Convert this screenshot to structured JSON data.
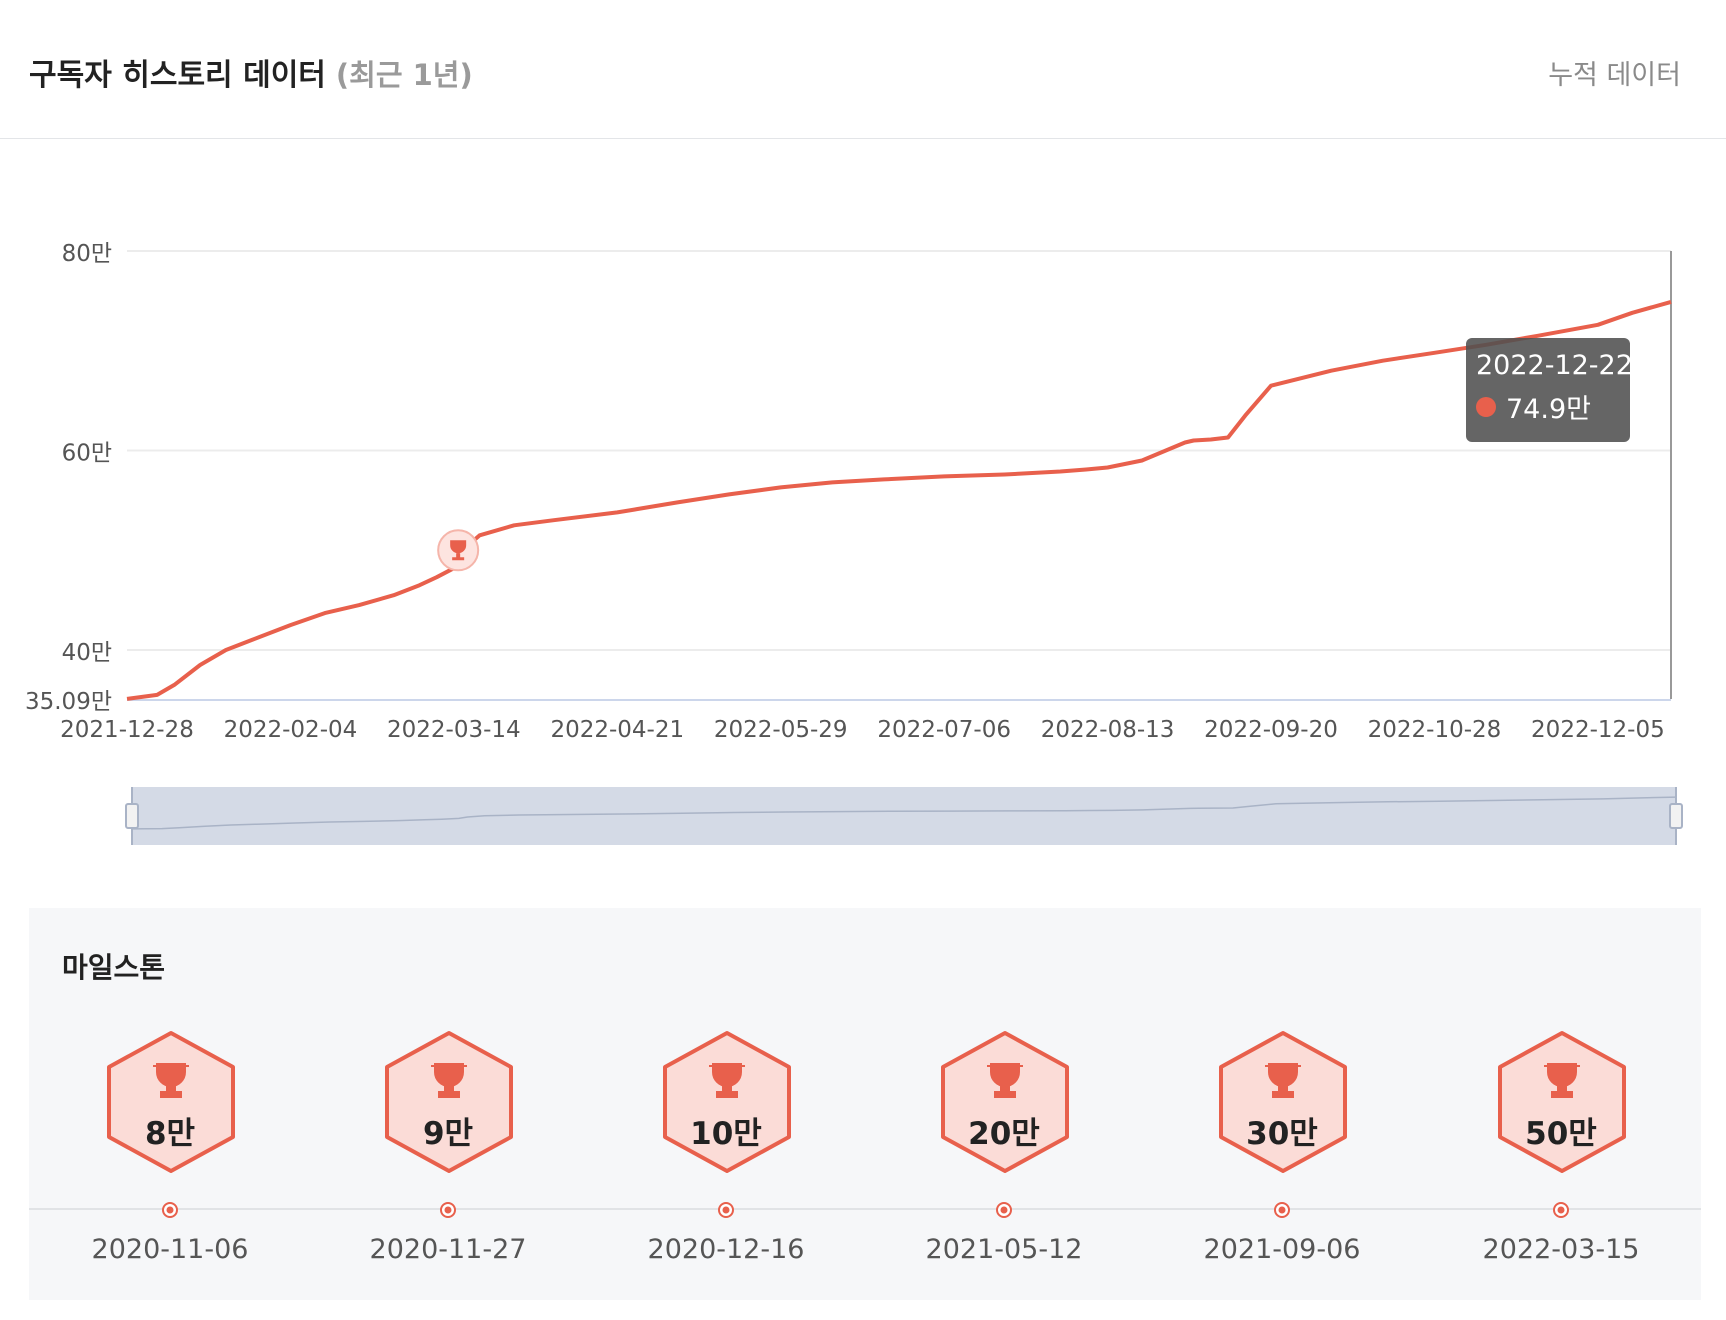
{
  "header": {
    "title": "구독자 히스토리 데이터",
    "subtitle": "(최근 1년)",
    "cumulative_link": "누적 데이터"
  },
  "tooltip": {
    "date": "2022-12-22",
    "value": "74.9만"
  },
  "colors": {
    "line": "#e8604c",
    "grid": "#ececec",
    "navigator": "#d4dae6",
    "milestone_fill": "#fbdcd7"
  },
  "chart_data": {
    "type": "line",
    "title": "",
    "xlabel": "",
    "ylabel": "",
    "ylim": [
      35.09,
      80
    ],
    "y_unit": "만",
    "y_ticks": [
      "35.09만",
      "40만",
      "60만",
      "80만"
    ],
    "x_tick_labels": [
      "2021-12-28",
      "2022-02-04",
      "2022-03-14",
      "2022-04-21",
      "2022-05-29",
      "2022-07-06",
      "2022-08-13",
      "2022-09-20",
      "2022-10-28",
      "2022-12-05"
    ],
    "milestone_marker": {
      "date": "2022-03-15",
      "value": 50
    },
    "series": [
      {
        "x": [
          "2021-12-28",
          "2022-01-04",
          "2022-01-08",
          "2022-01-14",
          "2022-01-20",
          "2022-01-26",
          "2022-02-04",
          "2022-02-12",
          "2022-02-20",
          "2022-02-28",
          "2022-03-06",
          "2022-03-10",
          "2022-03-14",
          "2022-03-16",
          "2022-03-20",
          "2022-03-28",
          "2022-04-06",
          "2022-04-21",
          "2022-05-05",
          "2022-05-17",
          "2022-05-29",
          "2022-06-10",
          "2022-06-22",
          "2022-07-06",
          "2022-07-20",
          "2022-08-02",
          "2022-08-08",
          "2022-08-13",
          "2022-08-21",
          "2022-08-31",
          "2022-09-02",
          "2022-09-06",
          "2022-09-10",
          "2022-09-14",
          "2022-09-20",
          "2022-10-04",
          "2022-10-16",
          "2022-10-28",
          "2022-11-09",
          "2022-11-21",
          "2022-12-05",
          "2022-12-13",
          "2022-12-22"
        ],
        "values": [
          35.1,
          35.5,
          36.5,
          38.5,
          40.0,
          41.0,
          42.5,
          43.7,
          44.5,
          45.5,
          46.5,
          47.3,
          48.2,
          50.0,
          51.5,
          52.5,
          53.0,
          53.8,
          54.8,
          55.6,
          56.3,
          56.8,
          57.1,
          57.4,
          57.6,
          57.9,
          58.1,
          58.3,
          59.0,
          60.8,
          61.0,
          61.1,
          61.3,
          63.5,
          66.5,
          68.0,
          69.0,
          69.8,
          70.6,
          71.5,
          72.6,
          73.8,
          74.9
        ]
      }
    ]
  },
  "milestones": {
    "title": "마일스톤",
    "items": [
      {
        "label": "8만",
        "date": "2020-11-06"
      },
      {
        "label": "9만",
        "date": "2020-11-27"
      },
      {
        "label": "10만",
        "date": "2020-12-16"
      },
      {
        "label": "20만",
        "date": "2021-05-12"
      },
      {
        "label": "30만",
        "date": "2021-09-06"
      },
      {
        "label": "50만",
        "date": "2022-03-15"
      }
    ]
  }
}
